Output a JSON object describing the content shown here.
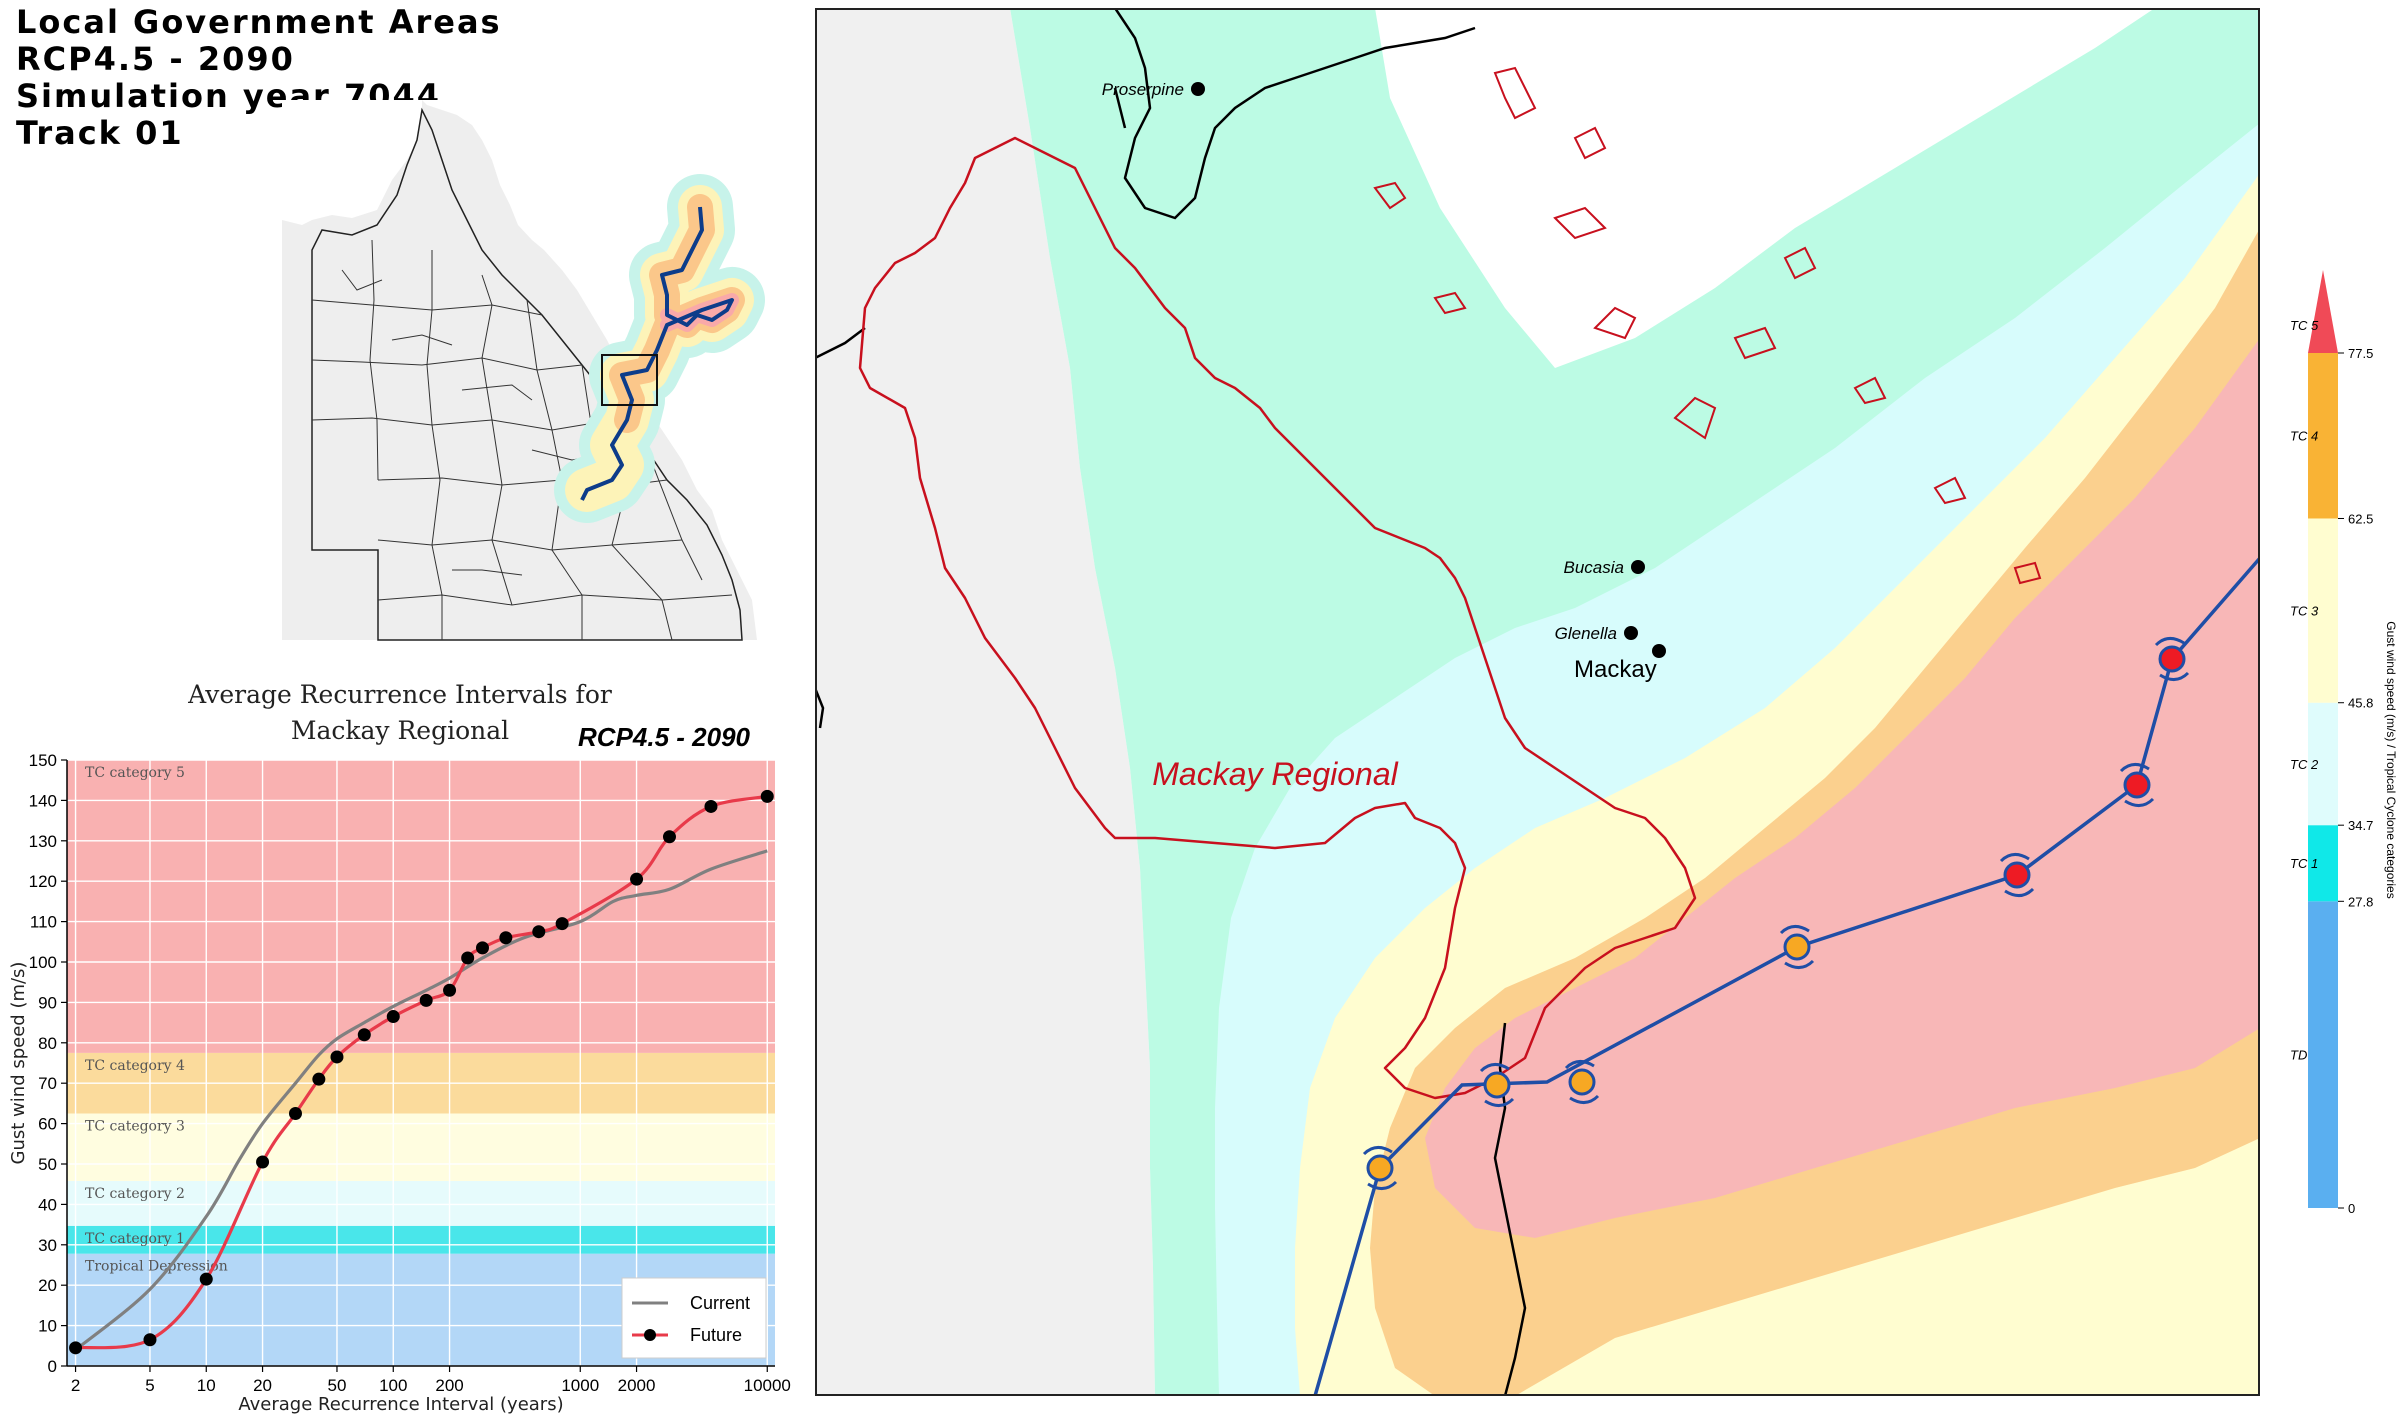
{
  "title": {
    "line1": "Local Government Areas",
    "line2": "RCP4.5 - 2090",
    "line3": "Simulation year 7044",
    "line4": "Track 01"
  },
  "ari_panel": {
    "title_line1": "Average Recurrence Intervals for",
    "title_line2": "Mackay Regional",
    "scenario_badge": "RCP4.5 - 2090"
  },
  "chart_data": {
    "type": "line",
    "title": "Average Recurrence Intervals for Mackay Regional",
    "xlabel": "Average Recurrence Interval (years)",
    "ylabel": "Gust wind speed (m/s)",
    "xscale": "log",
    "xlim": [
      1.8,
      11000
    ],
    "ylim": [
      0,
      150
    ],
    "xticks": [
      2,
      5,
      10,
      20,
      50,
      100,
      200,
      1000,
      2000,
      10000
    ],
    "xtick_labels": [
      "2",
      "5",
      "10",
      "20",
      "50",
      "100",
      "200",
      "1000",
      "2000",
      "10000"
    ],
    "yticks": [
      0,
      10,
      20,
      30,
      40,
      50,
      60,
      70,
      80,
      90,
      100,
      110,
      120,
      130,
      140,
      150
    ],
    "grid": true,
    "legend_position": "bottom-right",
    "bands": [
      {
        "label": "Tropical Depression",
        "from": 0,
        "to": 27.8,
        "color": "#b3d7f7"
      },
      {
        "label": "TC category 1",
        "from": 27.8,
        "to": 34.7,
        "color": "#49e6ea"
      },
      {
        "label": "TC category 2",
        "from": 34.7,
        "to": 45.8,
        "color": "#e6fbfc"
      },
      {
        "label": "TC category 3",
        "from": 45.8,
        "to": 62.5,
        "color": "#fffde0"
      },
      {
        "label": "TC category 4",
        "from": 62.5,
        "to": 77.5,
        "color": "#fbdb9c"
      },
      {
        "label": "TC category 5",
        "from": 77.5,
        "to": 150,
        "color": "#f9b1b1"
      }
    ],
    "series": [
      {
        "name": "Current",
        "color": "#808080",
        "markers": false,
        "x": [
          2,
          5,
          10,
          15,
          20,
          30,
          40,
          50,
          70,
          100,
          150,
          200,
          300,
          500,
          1000,
          1500,
          2000,
          3000,
          5000,
          10000
        ],
        "y": [
          4,
          19,
          37,
          51,
          60,
          70,
          77,
          81,
          85,
          89,
          93,
          96,
          101,
          106,
          110,
          115,
          116.5,
          118,
          123,
          127.5
        ]
      },
      {
        "name": "Future",
        "color": "#e83a4a",
        "markers": true,
        "x": [
          2,
          5,
          10,
          20,
          30,
          40,
          50,
          70,
          100,
          150,
          200,
          250,
          300,
          400,
          600,
          800,
          2000,
          3000,
          5000,
          10000
        ],
        "y": [
          4.5,
          6.5,
          21.5,
          50.5,
          62.5,
          71,
          76.5,
          82,
          86.5,
          90.5,
          93,
          101,
          103.5,
          106,
          107.5,
          109.5,
          120.5,
          131,
          138.5,
          141
        ]
      }
    ]
  },
  "map": {
    "lga_label": "Mackay Regional",
    "places": [
      {
        "name": "Proserpine",
        "dot_x": 1198,
        "dot_y": 89
      },
      {
        "name": "Bucasia",
        "dot_x": 1638,
        "dot_y": 567
      },
      {
        "name": "Glenella",
        "dot_x": 1631,
        "dot_y": 633
      },
      {
        "name": "Mackay",
        "dot_x": 1659,
        "dot_y": 651
      }
    ],
    "track_points": [
      {
        "category": "TC 4",
        "color": "#f7a823"
      },
      {
        "category": "TC 4",
        "color": "#f7a823"
      },
      {
        "category": "TC 4",
        "color": "#f7a823"
      },
      {
        "category": "TC 4",
        "color": "#f7a823"
      },
      {
        "category": "TC 5",
        "color": "#ee1b24"
      },
      {
        "category": "TC 5",
        "color": "#ee1b24"
      },
      {
        "category": "TC 5",
        "color": "#ee1b24"
      }
    ]
  },
  "colorbar": {
    "axis_label": "Gust wind speed (m/s) / Tropical Cyclone categories",
    "ticks": [
      "0",
      "27.8",
      "34.7",
      "45.8",
      "62.5",
      "77.5"
    ],
    "categories": [
      {
        "label": "TD",
        "color": "#5aaff0"
      },
      {
        "label": "TC 1",
        "color": "#10e8e8"
      },
      {
        "label": "TC 2",
        "color": "#dffcfc"
      },
      {
        "label": "TC 3",
        "color": "#fffdd0"
      },
      {
        "label": "TC 4",
        "color": "#f9b335"
      },
      {
        "label": "TC 5",
        "color": "#f04a57"
      }
    ]
  }
}
